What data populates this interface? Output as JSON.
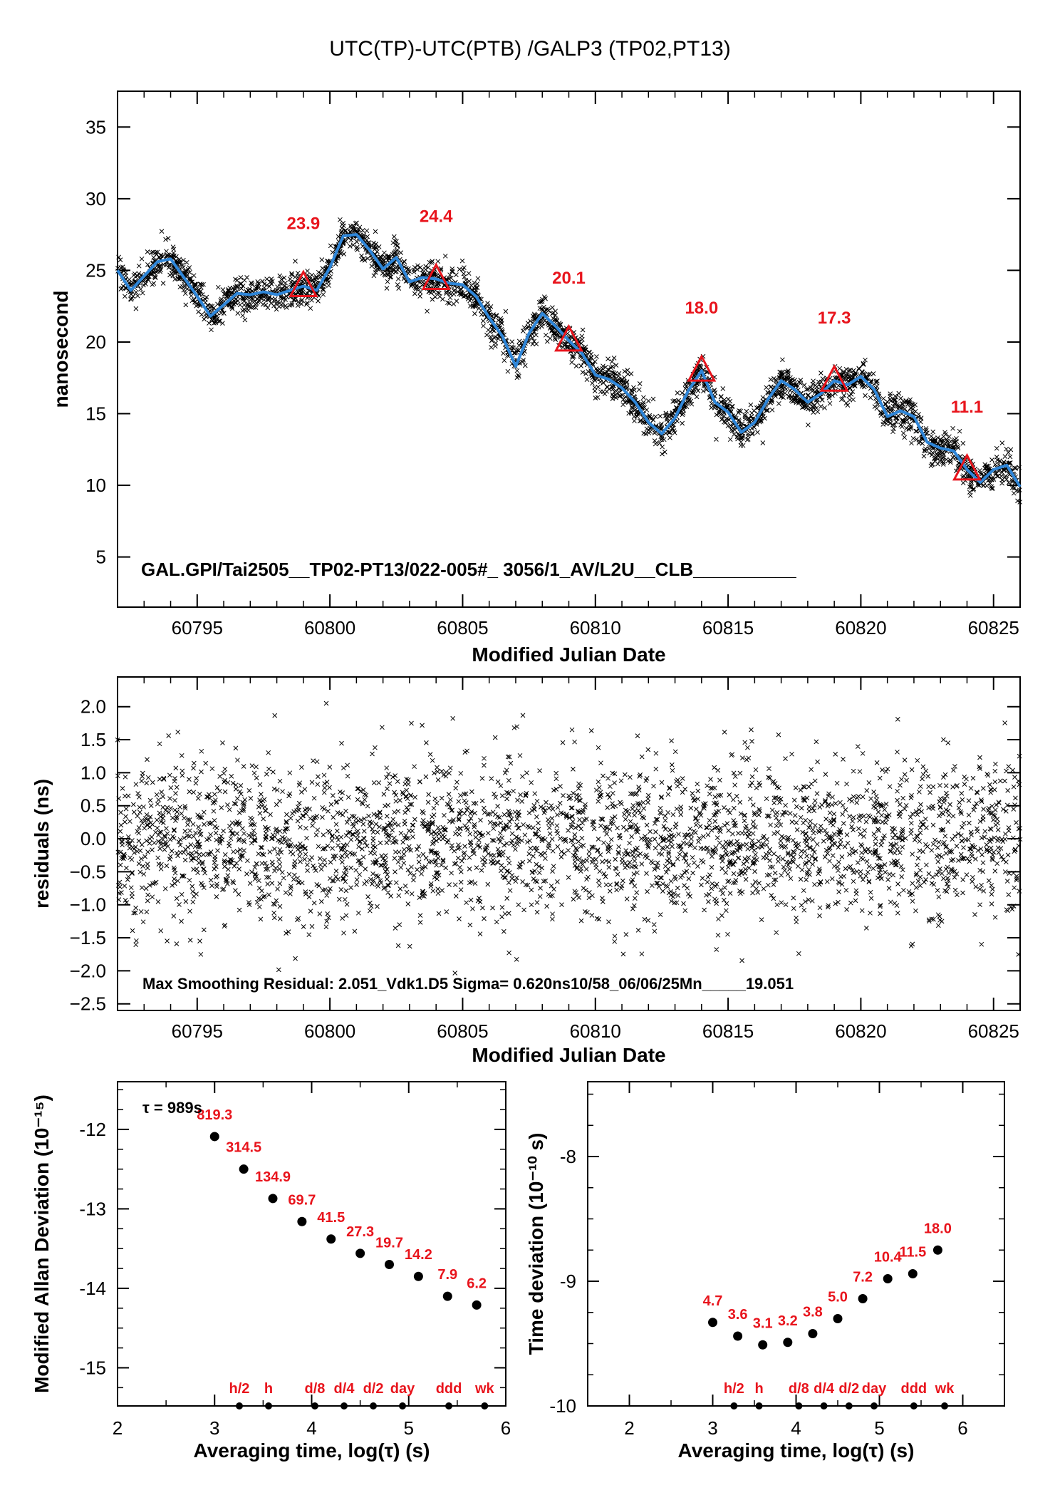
{
  "title": "UTC(TP)-UTC(PTB)  /GALP3  (TP02,PT13)",
  "chart_data": [
    {
      "type": "scatter",
      "name": "time-difference",
      "xlabel": "Modified Julian Date",
      "ylabel": "nanosecond",
      "xlim": [
        60792,
        60826
      ],
      "ylim": [
        1.5,
        37.5
      ],
      "xticks": [
        "60795",
        "60800",
        "60805",
        "60810",
        "60815",
        "60820",
        "60825"
      ],
      "yticks": [
        "5",
        "10",
        "15",
        "20",
        "25",
        "30",
        "35"
      ],
      "annotation": "GAL.GPI/Tai2505__TP02-PT13/022-005#_  3056/1_AV/L2U__CLB__________",
      "smooth_x": [
        60792,
        60792.5,
        60793,
        60793.5,
        60794,
        60794.5,
        60795,
        60795.5,
        60796,
        60796.5,
        60797,
        60797.5,
        60798,
        60798.5,
        60799,
        60799.5,
        60800,
        60800.5,
        60801,
        60801.5,
        60802,
        60802.5,
        60803,
        60803.5,
        60804,
        60804.5,
        60805,
        60805.5,
        60806,
        60806.5,
        60807,
        60807.5,
        60808,
        60808.5,
        60809,
        60809.5,
        60810,
        60810.5,
        60811,
        60811.5,
        60812,
        60812.5,
        60813,
        60813.5,
        60814,
        60814.5,
        60815,
        60815.5,
        60816,
        60816.5,
        60817,
        60817.5,
        60818,
        60818.5,
        60819,
        60819.5,
        60820,
        60820.5,
        60821,
        60821.5,
        60822,
        60822.5,
        60823,
        60823.5,
        60824,
        60824.5,
        60825,
        60825.5,
        60826
      ],
      "smooth_y": [
        25.0,
        23.6,
        24.6,
        25.6,
        25.8,
        24.5,
        23.2,
        21.8,
        22.6,
        23.4,
        23.3,
        23.5,
        23.3,
        23.6,
        23.9,
        23.6,
        25.2,
        27.4,
        27.5,
        26.4,
        25.1,
        25.9,
        24.2,
        24.5,
        24.4,
        24.1,
        24.0,
        23.2,
        21.7,
        20.4,
        18.3,
        20.6,
        22.0,
        21.1,
        20.1,
        19.2,
        17.7,
        17.4,
        16.8,
        15.8,
        14.4,
        13.6,
        14.7,
        16.6,
        18.0,
        15.8,
        15.1,
        13.7,
        14.4,
        16.0,
        17.3,
        16.7,
        15.8,
        16.4,
        17.3,
        17.0,
        17.6,
        16.7,
        14.8,
        15.2,
        14.8,
        13.0,
        12.6,
        12.4,
        11.1,
        10.2,
        11.1,
        11.4,
        9.9
      ],
      "markers": [
        {
          "x": 60799,
          "y": 23.9,
          "label": "23.9"
        },
        {
          "x": 60804,
          "y": 24.4,
          "label": "24.4"
        },
        {
          "x": 60809,
          "y": 20.1,
          "label": "20.1"
        },
        {
          "x": 60814,
          "y": 18.0,
          "label": "18.0"
        },
        {
          "x": 60819,
          "y": 17.3,
          "label": "17.3"
        },
        {
          "x": 60824,
          "y": 11.1,
          "label": "11.1"
        }
      ],
      "colors": {
        "data": "#000000",
        "smooth": "#2f86d8",
        "marker": "#e8141c"
      }
    },
    {
      "type": "scatter",
      "name": "residuals",
      "xlabel": "Modified Julian Date",
      "ylabel": "residuals (ns)",
      "xlim": [
        60792,
        60826
      ],
      "ylim": [
        -2.6,
        2.45
      ],
      "xticks": [
        "60795",
        "60800",
        "60805",
        "60810",
        "60815",
        "60820",
        "60825"
      ],
      "yticks": [
        "2.0",
        "1.5",
        "1.0",
        "0.5",
        "0.0",
        "−0.5",
        "−1.0",
        "−1.5",
        "−2.0",
        "−2.5"
      ],
      "sigma": 0.62,
      "max_residual": 2.051,
      "annotation": "Max Smoothing Residual: 2.051_Vdk1.D5  Sigma= 0.620ns10/58_06/06/25Mn_____19.051"
    },
    {
      "type": "scatter",
      "name": "modified-allan-deviation",
      "xlabel": "Averaging time, log(τ) (s)",
      "ylabel": "Modified Allan Deviation (10⁻¹⁵)",
      "xlim": [
        2,
        6
      ],
      "ylim": [
        -15.48,
        -11.4
      ],
      "xticks": [
        "2",
        "3",
        "4",
        "5",
        "6"
      ],
      "yticks": [
        "-12",
        "-13",
        "-14",
        "-15"
      ],
      "tau_note": "τ = 989s",
      "points": [
        {
          "x": 3.0,
          "y": -12.09,
          "label": "819.3"
        },
        {
          "x": 3.3,
          "y": -12.5,
          "label": "314.5"
        },
        {
          "x": 3.6,
          "y": -12.87,
          "label": "134.9"
        },
        {
          "x": 3.9,
          "y": -13.16,
          "label": "69.7"
        },
        {
          "x": 4.2,
          "y": -13.38,
          "label": "41.5"
        },
        {
          "x": 4.5,
          "y": -13.56,
          "label": "27.3"
        },
        {
          "x": 4.8,
          "y": -13.7,
          "label": "19.7"
        },
        {
          "x": 5.1,
          "y": -13.85,
          "label": "14.2"
        },
        {
          "x": 5.4,
          "y": -14.1,
          "label": "7.9"
        },
        {
          "x": 5.7,
          "y": -14.21,
          "label": "6.2"
        }
      ],
      "interval_marks": [
        {
          "x": 3.255,
          "label": "h/2"
        },
        {
          "x": 3.556,
          "label": "h"
        },
        {
          "x": 4.033,
          "label": "d/8"
        },
        {
          "x": 4.334,
          "label": "d/4"
        },
        {
          "x": 4.635,
          "label": "d/2"
        },
        {
          "x": 4.936,
          "label": "day"
        },
        {
          "x": 5.413,
          "label": "ddd"
        },
        {
          "x": 5.782,
          "label": "wk"
        }
      ]
    },
    {
      "type": "scatter",
      "name": "time-deviation",
      "xlabel": "Averaging time, log(τ) (s)",
      "ylabel": "Time deviation (10⁻¹⁰ s)",
      "xlim": [
        1.5,
        6.5
      ],
      "ylim": [
        -10,
        -7.4
      ],
      "xticks": [
        "2",
        "3",
        "4",
        "5",
        "6"
      ],
      "yticks": [
        "-8",
        "-9",
        "-10"
      ],
      "points": [
        {
          "x": 3.0,
          "y": -9.33,
          "label": "4.7"
        },
        {
          "x": 3.3,
          "y": -9.44,
          "label": "3.6"
        },
        {
          "x": 3.6,
          "y": -9.51,
          "label": "3.1"
        },
        {
          "x": 3.9,
          "y": -9.49,
          "label": "3.2"
        },
        {
          "x": 4.2,
          "y": -9.42,
          "label": "3.8"
        },
        {
          "x": 4.5,
          "y": -9.3,
          "label": "5.0"
        },
        {
          "x": 4.8,
          "y": -9.14,
          "label": "7.2"
        },
        {
          "x": 5.1,
          "y": -8.98,
          "label": "10.4"
        },
        {
          "x": 5.4,
          "y": -8.94,
          "label": "11.5"
        },
        {
          "x": 5.7,
          "y": -8.75,
          "label": "18.0"
        }
      ],
      "interval_marks": [
        {
          "x": 3.255,
          "label": "h/2"
        },
        {
          "x": 3.556,
          "label": "h"
        },
        {
          "x": 4.033,
          "label": "d/8"
        },
        {
          "x": 4.334,
          "label": "d/4"
        },
        {
          "x": 4.635,
          "label": "d/2"
        },
        {
          "x": 4.936,
          "label": "day"
        },
        {
          "x": 5.413,
          "label": "ddd"
        },
        {
          "x": 5.782,
          "label": "wk"
        }
      ]
    }
  ]
}
